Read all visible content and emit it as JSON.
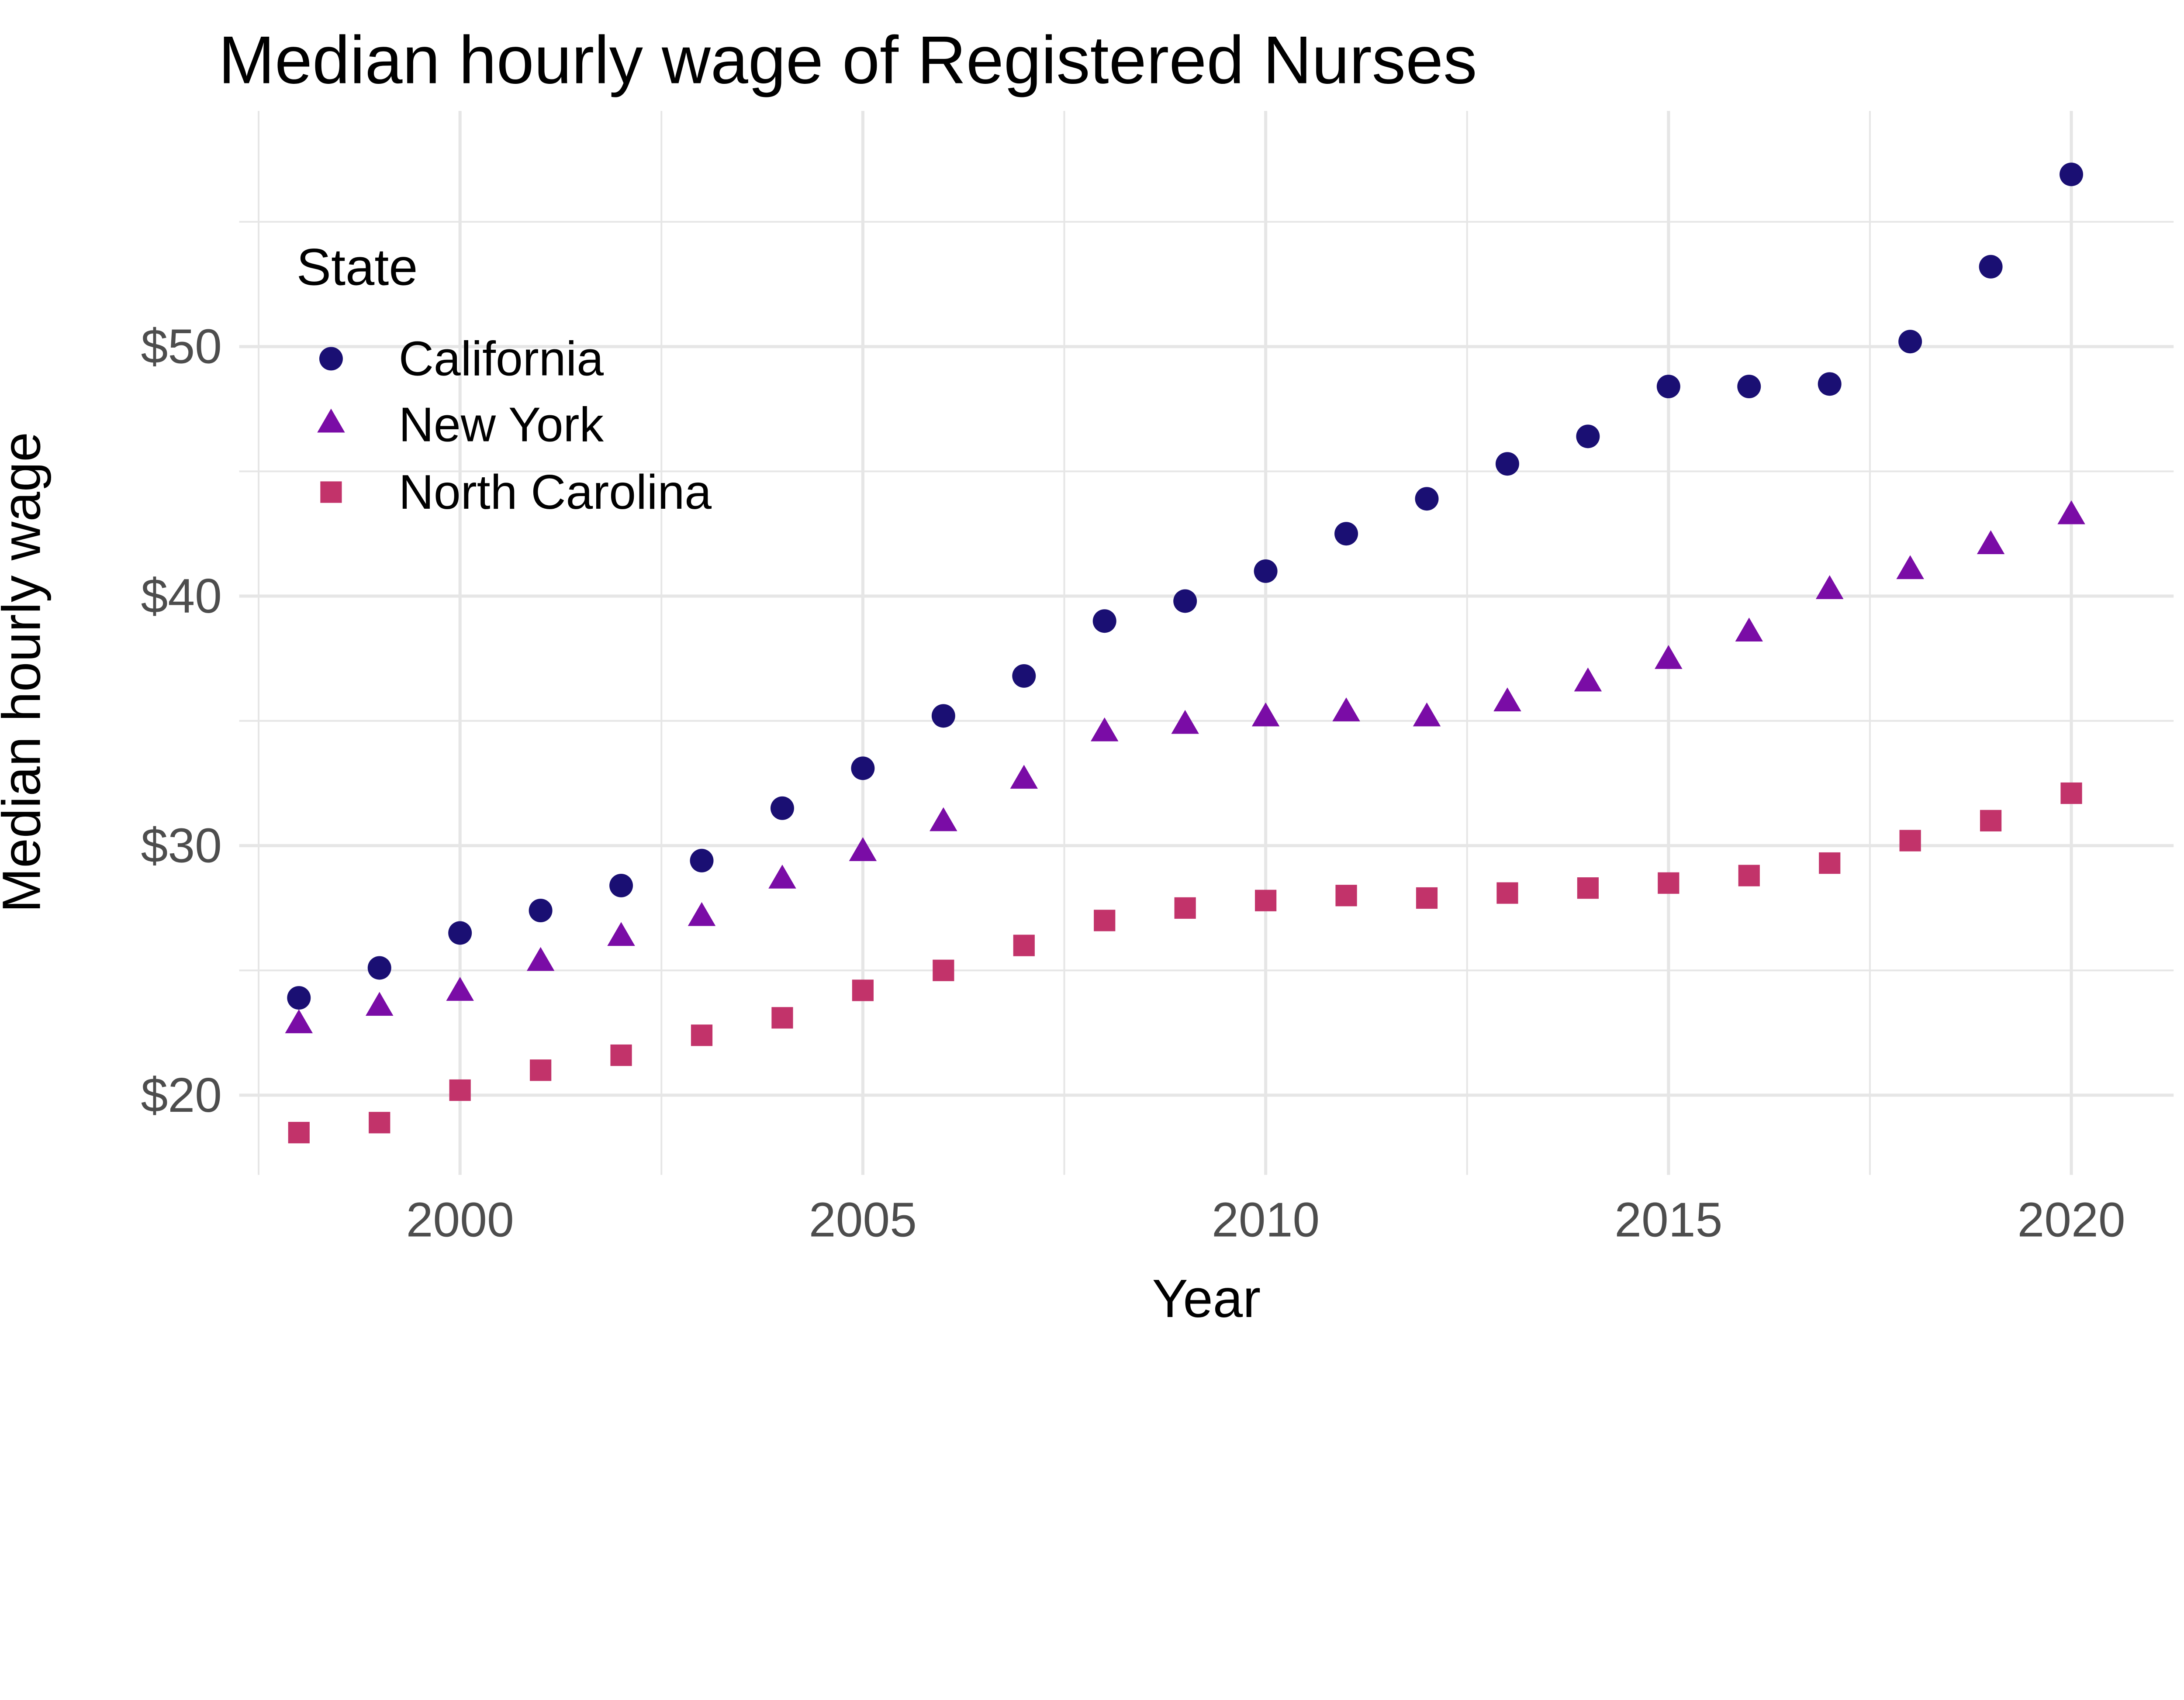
{
  "chart": {
    "title": "Median hourly wage of Registered Nurses",
    "xlabel": "Year",
    "ylabel": "Median hourly wage",
    "legend_title": "State"
  },
  "chart_data": {
    "type": "scatter",
    "title": "Median hourly wage of Registered Nurses",
    "xlabel": "Year",
    "ylabel": "Median hourly wage",
    "legend_title": "State",
    "legend_position": "inside-top-left",
    "grid": "major+minor",
    "background_color": "#ffffff",
    "gridline_color": "#e6e6e6",
    "tick_label_color": "#4d4d4d",
    "x": [
      1998,
      1999,
      2000,
      2001,
      2002,
      2003,
      2004,
      2005,
      2006,
      2007,
      2008,
      2009,
      2010,
      2011,
      2012,
      2013,
      2014,
      2015,
      2016,
      2017,
      2018,
      2019,
      2020
    ],
    "series": [
      {
        "name": "California",
        "marker": "circle",
        "color": "#1a0f73",
        "values": [
          23.9,
          25.1,
          26.5,
          27.4,
          28.4,
          29.4,
          31.5,
          33.1,
          35.2,
          36.8,
          39.0,
          39.8,
          41.0,
          42.5,
          43.9,
          45.3,
          46.4,
          48.4,
          48.4,
          48.5,
          50.2,
          53.2,
          56.9
        ]
      },
      {
        "name": "New York",
        "marker": "triangle",
        "color": "#7a0ca6",
        "values": [
          22.8,
          23.5,
          24.1,
          25.3,
          26.3,
          27.1,
          28.6,
          29.7,
          30.9,
          32.6,
          34.5,
          34.8,
          35.1,
          35.3,
          35.1,
          35.7,
          36.5,
          37.4,
          38.5,
          40.2,
          41.0,
          42.0,
          43.2
        ]
      },
      {
        "name": "North Carolina",
        "marker": "square",
        "color": "#c2336a",
        "values": [
          18.5,
          18.9,
          20.2,
          21.0,
          21.6,
          22.4,
          23.1,
          24.2,
          25.0,
          26.0,
          27.0,
          27.5,
          27.8,
          28.0,
          27.9,
          28.1,
          28.3,
          28.5,
          28.8,
          29.3,
          30.2,
          31.0,
          32.1
        ]
      }
    ],
    "x_ticks": {
      "labels": [
        "2000",
        "2005",
        "2010",
        "2015",
        "2020"
      ],
      "values": [
        2000,
        2005,
        2010,
        2015,
        2020
      ]
    },
    "y_ticks": {
      "labels": [
        "$20",
        "$30",
        "$40",
        "$50"
      ],
      "values": [
        20,
        30,
        40,
        50
      ]
    },
    "x_minor": [
      1997.5,
      2002.5,
      2007.5,
      2012.5,
      2017.5
    ],
    "y_minor": [
      25,
      35,
      45,
      55
    ],
    "xlim": [
      1997.3,
      2021.3
    ],
    "ylim": [
      16.8,
      59.4
    ]
  }
}
